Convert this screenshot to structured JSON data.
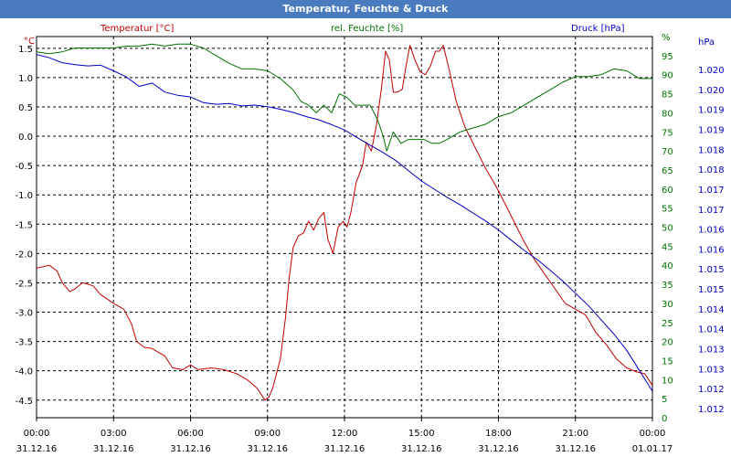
{
  "window": {
    "title": "Temperatur, Feuchte & Druck"
  },
  "chart_data": {
    "type": "line",
    "title": "Temperatur, Feuchte & Druck",
    "colors": {
      "temperature": "#c00000",
      "humidity": "#007000",
      "pressure": "#0000c0",
      "grid": "#000000",
      "background": "#ffffff",
      "titlebar": "#4a7bbf"
    },
    "x_axis": {
      "range_hours": [
        0,
        24
      ],
      "ticks": [
        {
          "h": 0,
          "time": "00:00",
          "date": "31.12.16"
        },
        {
          "h": 3,
          "time": "03:00",
          "date": "31.12.16"
        },
        {
          "h": 6,
          "time": "06:00",
          "date": "31.12.16"
        },
        {
          "h": 9,
          "time": "09:00",
          "date": "31.12.16"
        },
        {
          "h": 12,
          "time": "12:00",
          "date": "31.12.16"
        },
        {
          "h": 15,
          "time": "15:00",
          "date": "31.12.16"
        },
        {
          "h": 18,
          "time": "18:00",
          "date": "31.12.16"
        },
        {
          "h": 21,
          "time": "21:00",
          "date": "31.12.16"
        },
        {
          "h": 24,
          "time": "00:00",
          "date": "01.01.17"
        }
      ]
    },
    "axes": {
      "temperature": {
        "label": "Temperatur [°C]",
        "unit": "°C",
        "range": [
          -4.8,
          1.7
        ],
        "ticks": [
          "1.5",
          "1.0",
          "0.5",
          "0.0",
          "-0.5",
          "-1.0",
          "-1.5",
          "-2.0",
          "-2.5",
          "-3.0",
          "-3.5",
          "-4.0",
          "-4.5"
        ]
      },
      "humidity": {
        "label": "rel. Feuchte [%]",
        "unit": "%",
        "range": [
          0,
          100
        ],
        "ticks": [
          "0",
          "5",
          "10",
          "15",
          "20",
          "25",
          "30",
          "35",
          "40",
          "45",
          "50",
          "55",
          "60",
          "65",
          "70",
          "75",
          "80",
          "85",
          "90",
          "95",
          "%"
        ]
      },
      "pressure": {
        "label": "Druck [hPa]",
        "unit": "hPa",
        "range": [
          1011.5,
          1020.84
        ],
        "ticks": [
          "1.012",
          "1.012",
          "1.013",
          "1.013",
          "1.014",
          "1.014",
          "1.015",
          "1.015",
          "1.016",
          "1.016",
          "1.017",
          "1.017",
          "1.018",
          "1.018",
          "1.019",
          "1.019",
          "1.020",
          "1.020"
        ]
      }
    },
    "series": [
      {
        "name": "Temperatur [°C]",
        "key": "temperature",
        "points": [
          [
            0,
            -2.25
          ],
          [
            0.5,
            -2.2
          ],
          [
            0.8,
            -2.3
          ],
          [
            1,
            -2.5
          ],
          [
            1.3,
            -2.65
          ],
          [
            1.5,
            -2.6
          ],
          [
            1.8,
            -2.5
          ],
          [
            2.2,
            -2.55
          ],
          [
            2.5,
            -2.7
          ],
          [
            3,
            -2.85
          ],
          [
            3.4,
            -2.95
          ],
          [
            3.7,
            -3.2
          ],
          [
            3.9,
            -3.5
          ],
          [
            4.2,
            -3.6
          ],
          [
            4.5,
            -3.62
          ],
          [
            5,
            -3.75
          ],
          [
            5.3,
            -3.95
          ],
          [
            5.7,
            -3.98
          ],
          [
            6,
            -3.9
          ],
          [
            6.3,
            -3.98
          ],
          [
            6.8,
            -3.95
          ],
          [
            7.3,
            -3.98
          ],
          [
            7.8,
            -4.05
          ],
          [
            8.2,
            -4.15
          ],
          [
            8.6,
            -4.3
          ],
          [
            8.9,
            -4.5
          ],
          [
            9.05,
            -4.45
          ],
          [
            9.2,
            -4.3
          ],
          [
            9.5,
            -3.8
          ],
          [
            9.7,
            -3.1
          ],
          [
            9.85,
            -2.4
          ],
          [
            10.0,
            -1.9
          ],
          [
            10.2,
            -1.7
          ],
          [
            10.4,
            -1.65
          ],
          [
            10.6,
            -1.45
          ],
          [
            10.8,
            -1.6
          ],
          [
            11.0,
            -1.4
          ],
          [
            11.2,
            -1.3
          ],
          [
            11.35,
            -1.75
          ],
          [
            11.55,
            -2.0
          ],
          [
            11.75,
            -1.55
          ],
          [
            11.95,
            -1.45
          ],
          [
            12.1,
            -1.55
          ],
          [
            12.25,
            -1.3
          ],
          [
            12.45,
            -0.8
          ],
          [
            12.7,
            -0.5
          ],
          [
            12.85,
            -0.1
          ],
          [
            13.05,
            -0.25
          ],
          [
            13.25,
            0.2
          ],
          [
            13.45,
            0.85
          ],
          [
            13.6,
            1.45
          ],
          [
            13.75,
            1.3
          ],
          [
            13.9,
            0.75
          ],
          [
            14.05,
            0.75
          ],
          [
            14.25,
            0.8
          ],
          [
            14.4,
            1.2
          ],
          [
            14.55,
            1.55
          ],
          [
            14.75,
            1.3
          ],
          [
            14.95,
            1.1
          ],
          [
            15.15,
            1.05
          ],
          [
            15.35,
            1.2
          ],
          [
            15.55,
            1.45
          ],
          [
            15.7,
            1.45
          ],
          [
            15.85,
            1.55
          ],
          [
            16.1,
            1.1
          ],
          [
            16.35,
            0.6
          ],
          [
            16.7,
            0.15
          ],
          [
            17.1,
            -0.2
          ],
          [
            17.5,
            -0.55
          ],
          [
            17.9,
            -0.85
          ],
          [
            18.2,
            -1.1
          ],
          [
            18.6,
            -1.45
          ],
          [
            19.0,
            -1.8
          ],
          [
            19.4,
            -2.1
          ],
          [
            19.8,
            -2.35
          ],
          [
            20.2,
            -2.6
          ],
          [
            20.6,
            -2.85
          ],
          [
            21.0,
            -2.95
          ],
          [
            21.4,
            -3.05
          ],
          [
            21.8,
            -3.35
          ],
          [
            22.2,
            -3.55
          ],
          [
            22.6,
            -3.8
          ],
          [
            23.0,
            -3.95
          ],
          [
            23.4,
            -4.02
          ],
          [
            23.7,
            -4.05
          ],
          [
            24,
            -4.25
          ]
        ]
      },
      {
        "name": "rel. Feuchte [%]",
        "key": "humidity",
        "points": [
          [
            0,
            96
          ],
          [
            0.5,
            95.5
          ],
          [
            1,
            96
          ],
          [
            1.5,
            97
          ],
          [
            2,
            97
          ],
          [
            2.5,
            97
          ],
          [
            3,
            97
          ],
          [
            3.5,
            97.5
          ],
          [
            4,
            97.5
          ],
          [
            4.5,
            98
          ],
          [
            5,
            97.5
          ],
          [
            5.5,
            98
          ],
          [
            6,
            98
          ],
          [
            6.5,
            97
          ],
          [
            7,
            95
          ],
          [
            7.5,
            93
          ],
          [
            8,
            91.5
          ],
          [
            8.5,
            91.5
          ],
          [
            9,
            91
          ],
          [
            9.5,
            89
          ],
          [
            10,
            86
          ],
          [
            10.3,
            83
          ],
          [
            10.6,
            82
          ],
          [
            10.9,
            80
          ],
          [
            11.2,
            82
          ],
          [
            11.5,
            80
          ],
          [
            11.8,
            85
          ],
          [
            12.1,
            84
          ],
          [
            12.4,
            82
          ],
          [
            12.7,
            82
          ],
          [
            13.0,
            82
          ],
          [
            13.3,
            78
          ],
          [
            13.5,
            74
          ],
          [
            13.65,
            70
          ],
          [
            13.9,
            75
          ],
          [
            14.2,
            72
          ],
          [
            14.5,
            73
          ],
          [
            14.8,
            73
          ],
          [
            15.1,
            73
          ],
          [
            15.4,
            72
          ],
          [
            15.7,
            72
          ],
          [
            16.0,
            73
          ],
          [
            16.5,
            75
          ],
          [
            17,
            76
          ],
          [
            17.5,
            77
          ],
          [
            18,
            79
          ],
          [
            18.5,
            80
          ],
          [
            19,
            82
          ],
          [
            19.5,
            84
          ],
          [
            20,
            86
          ],
          [
            20.5,
            88
          ],
          [
            21,
            89.5
          ],
          [
            21.5,
            89.5
          ],
          [
            22,
            90
          ],
          [
            22.5,
            91.5
          ],
          [
            23,
            91
          ],
          [
            23.5,
            89
          ],
          [
            24,
            89
          ]
        ]
      },
      {
        "name": "Druck [hPa]",
        "key": "pressure",
        "points": [
          [
            0,
            1020.4
          ],
          [
            0.5,
            1020.32
          ],
          [
            1,
            1020.2
          ],
          [
            1.5,
            1020.15
          ],
          [
            2,
            1020.12
          ],
          [
            2.5,
            1020.14
          ],
          [
            3,
            1020.0
          ],
          [
            3.5,
            1019.85
          ],
          [
            4,
            1019.62
          ],
          [
            4.5,
            1019.7
          ],
          [
            5,
            1019.48
          ],
          [
            5.5,
            1019.4
          ],
          [
            6,
            1019.36
          ],
          [
            6.5,
            1019.22
          ],
          [
            7,
            1019.18
          ],
          [
            7.5,
            1019.2
          ],
          [
            8,
            1019.14
          ],
          [
            8.5,
            1019.16
          ],
          [
            9,
            1019.12
          ],
          [
            9.5,
            1019.06
          ],
          [
            10,
            1018.98
          ],
          [
            10.5,
            1018.88
          ],
          [
            11,
            1018.8
          ],
          [
            11.5,
            1018.68
          ],
          [
            12,
            1018.55
          ],
          [
            12.5,
            1018.36
          ],
          [
            13,
            1018.18
          ],
          [
            13.5,
            1018.0
          ],
          [
            14,
            1017.8
          ],
          [
            14.5,
            1017.55
          ],
          [
            15,
            1017.3
          ],
          [
            15.5,
            1017.1
          ],
          [
            16,
            1016.9
          ],
          [
            16.5,
            1016.72
          ],
          [
            17,
            1016.52
          ],
          [
            17.5,
            1016.32
          ],
          [
            18,
            1016.1
          ],
          [
            18.5,
            1015.85
          ],
          [
            19,
            1015.6
          ],
          [
            19.5,
            1015.38
          ],
          [
            20,
            1015.12
          ],
          [
            20.5,
            1014.85
          ],
          [
            21,
            1014.55
          ],
          [
            21.5,
            1014.25
          ],
          [
            22,
            1013.9
          ],
          [
            22.5,
            1013.55
          ],
          [
            23,
            1013.15
          ],
          [
            23.5,
            1012.65
          ],
          [
            24,
            1012.15
          ]
        ]
      }
    ]
  }
}
